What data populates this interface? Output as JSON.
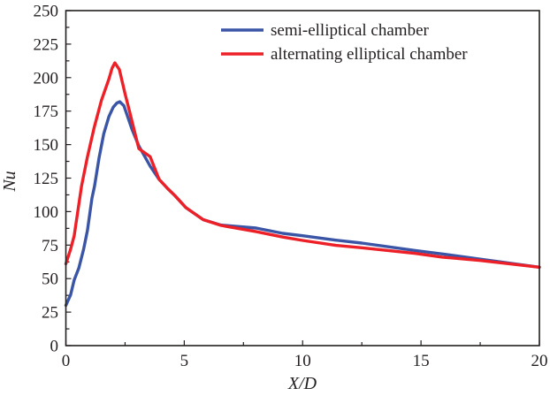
{
  "chart_data": {
    "type": "line",
    "title": "",
    "xlabel": "X/D",
    "ylabel": "Nu",
    "xlim": [
      0,
      20
    ],
    "ylim": [
      0,
      250
    ],
    "xticks": [
      0,
      5,
      10,
      15,
      20
    ],
    "xtick_labels": [
      "0",
      "5",
      "10",
      "15",
      "20"
    ],
    "x_minor_step": 2.5,
    "yticks": [
      0,
      25,
      50,
      75,
      100,
      125,
      150,
      175,
      200,
      225,
      250
    ],
    "ytick_labels": [
      "0",
      "25",
      "50",
      "75",
      "100",
      "125",
      "150",
      "175",
      "200",
      "225",
      "250"
    ],
    "y_minor_step": 12.5,
    "grid": false,
    "legend_position": "upper right",
    "series": [
      {
        "name": "semi-elliptical chamber",
        "color": "#3a55a6",
        "x": [
          0,
          0.2,
          0.35,
          0.55,
          0.75,
          0.91,
          1.1,
          1.21,
          1.4,
          1.6,
          1.82,
          2.0,
          2.15,
          2.28,
          2.45,
          2.8,
          3.08,
          3.56,
          3.94,
          4.31,
          4.6,
          5.07,
          5.8,
          6.55,
          8.04,
          9.16,
          10.0,
          11.4,
          12.5,
          14.76,
          15.9,
          17.5,
          20.0
        ],
        "values": [
          30,
          38,
          49,
          58,
          72,
          86,
          110,
          119,
          140,
          158,
          171,
          178,
          181,
          182,
          179,
          161,
          149,
          134,
          124,
          117,
          112,
          103,
          94,
          90,
          87.7,
          83.8,
          82,
          78.7,
          76.5,
          71,
          68.4,
          64.5,
          58.5
        ]
      },
      {
        "name": "alternating elliptical chamber",
        "color": "#ee2027",
        "x": [
          0,
          0.2,
          0.35,
          0.66,
          0.9,
          1.2,
          1.5,
          1.82,
          1.95,
          2.07,
          2.26,
          2.5,
          2.7,
          3.08,
          3.56,
          3.94,
          4.31,
          4.6,
          5.07,
          5.8,
          6.55,
          8.04,
          9.16,
          10.0,
          11.4,
          12.5,
          14.76,
          15.9,
          17.5,
          20.0
        ],
        "values": [
          61,
          72,
          82,
          119,
          140,
          163,
          183,
          199,
          207,
          211,
          206,
          188,
          174,
          147,
          141,
          124,
          117,
          112,
          103,
          94,
          89.7,
          85,
          81,
          78.5,
          74.8,
          73,
          68.8,
          66,
          63.5,
          58.5
        ]
      }
    ]
  },
  "legend": {
    "items": [
      {
        "label": "semi-elliptical chamber",
        "color": "#3a55a6"
      },
      {
        "label": "alternating elliptical chamber",
        "color": "#ee2027"
      }
    ]
  },
  "axes": {
    "xlabel": "X/D",
    "ylabel": "Nu"
  }
}
